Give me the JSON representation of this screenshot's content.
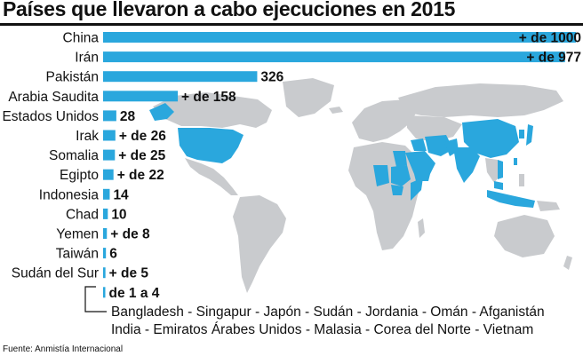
{
  "title": "Países que llevaron a cabo ejecuciones en 2015",
  "colors": {
    "bar": "#2aa7dd",
    "map_land": "#c9cbce",
    "map_highlight": "#2aa7dd",
    "text": "#111111"
  },
  "chart_data": {
    "type": "bar",
    "orientation": "horizontal",
    "title": "Países que llevaron a cabo ejecuciones en 2015",
    "xlim": [
      0,
      1000
    ],
    "categories": [
      "China",
      "Irán",
      "Pakistán",
      "Arabia Saudita",
      "Estados Unidos",
      "Irak",
      "Somalia",
      "Egipto",
      "Indonesia",
      "Chad",
      "Yemen",
      "Taiwán",
      "Sudán del Sur",
      ""
    ],
    "values": [
      1000,
      977,
      326,
      158,
      28,
      26,
      25,
      22,
      14,
      10,
      8,
      6,
      5,
      4
    ],
    "value_labels": [
      "+ de 1000",
      "+ de 977",
      "326",
      "+ de 158",
      "28",
      "+ de 26",
      "+ de 25",
      "+ de 22",
      "14",
      "10",
      "+ de 8",
      "6",
      "+ de 5",
      "de 1 a 4"
    ]
  },
  "others": {
    "line1": "Bangladesh - Singapur - Japón - Sudán - Jordania - Omán - Afganistán",
    "line2": "India - Emiratos Árabes Unidos - Malasia - Corea del Norte - Vietnam"
  },
  "source": "Fuente: Anmistía Internacional"
}
